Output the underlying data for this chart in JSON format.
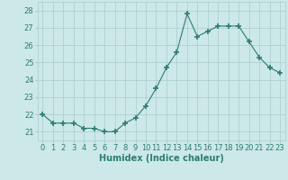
{
  "x": [
    0,
    1,
    2,
    3,
    4,
    5,
    6,
    7,
    8,
    9,
    10,
    11,
    12,
    13,
    14,
    15,
    16,
    17,
    18,
    19,
    20,
    21,
    22,
    23
  ],
  "y": [
    22.0,
    21.5,
    21.5,
    21.5,
    21.2,
    21.2,
    21.0,
    21.0,
    21.5,
    21.8,
    22.5,
    23.5,
    24.7,
    25.6,
    27.8,
    26.5,
    26.8,
    27.1,
    27.1,
    27.1,
    26.2,
    25.3,
    24.7,
    24.4
  ],
  "line_color": "#2d7d6e",
  "marker": "+",
  "marker_size": 4,
  "bg_color": "#cce8e8",
  "grid_color": "#aacccc",
  "xlabel": "Humidex (Indice chaleur)",
  "ylim": [
    20.5,
    28.5
  ],
  "yticks": [
    21,
    22,
    23,
    24,
    25,
    26,
    27,
    28
  ],
  "xlim": [
    -0.5,
    23.5
  ],
  "font_color": "#2d7d6e",
  "tick_fontsize": 6,
  "label_fontsize": 7
}
